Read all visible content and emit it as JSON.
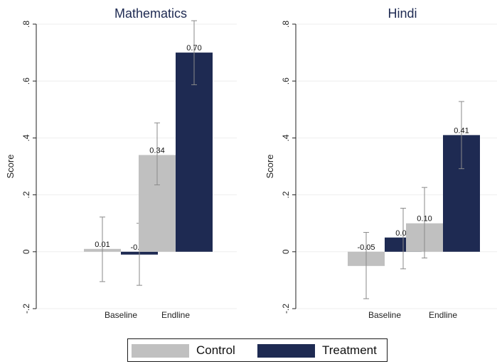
{
  "chart_data": [
    {
      "type": "bar",
      "title": "Mathematics",
      "ylabel": "Score",
      "ylim": [
        -0.2,
        0.8
      ],
      "yticks": [
        -0.2,
        0,
        0.2,
        0.4,
        0.6,
        0.8
      ],
      "ytick_labels": [
        "-.2",
        "0",
        ".2",
        ".4",
        ".6",
        ".8"
      ],
      "categories": [
        "Baseline",
        "Endline"
      ],
      "series": [
        {
          "name": "Control",
          "values": [
            0.01,
            0.34
          ],
          "labels": [
            "0.01",
            "0.34"
          ],
          "ci_low": [
            -0.105,
            0.235
          ],
          "ci_high": [
            0.122,
            0.453
          ]
        },
        {
          "name": "Treatment",
          "values": [
            -0.01,
            0.7
          ],
          "labels": [
            "-0.01",
            "0.70"
          ],
          "ci_low": [
            -0.118,
            0.587
          ],
          "ci_high": [
            0.1,
            0.812
          ]
        }
      ],
      "grid": true,
      "error_bars": true
    },
    {
      "type": "bar",
      "title": "Hindi",
      "ylabel": "Score",
      "ylim": [
        -0.2,
        0.8
      ],
      "yticks": [
        -0.2,
        0,
        0.2,
        0.4,
        0.6,
        0.8
      ],
      "ytick_labels": [
        "-.2",
        "0",
        ".2",
        ".4",
        ".6",
        ".8"
      ],
      "categories": [
        "Baseline",
        "Endline"
      ],
      "series": [
        {
          "name": "Control",
          "values": [
            -0.05,
            0.1
          ],
          "labels": [
            "-0.05",
            "0.10"
          ],
          "ci_low": [
            -0.165,
            -0.022
          ],
          "ci_high": [
            0.068,
            0.226
          ]
        },
        {
          "name": "Treatment",
          "values": [
            0.05,
            0.41
          ],
          "labels": [
            "0.05",
            "0.41"
          ],
          "ci_low": [
            -0.06,
            0.292
          ],
          "ci_high": [
            0.153,
            0.528
          ]
        }
      ],
      "grid": true,
      "error_bars": true
    }
  ],
  "legend": {
    "items": [
      {
        "label": "Control",
        "color": "#c0c0c0"
      },
      {
        "label": "Treatment",
        "color": "#1e2a52"
      }
    ],
    "position": "bottom-center"
  },
  "colors": {
    "control": "#c0c0c0",
    "treatment": "#1e2a52",
    "title": "#1e2a52",
    "panel_bg": "#ffffff",
    "grid": "#eeeeee"
  }
}
